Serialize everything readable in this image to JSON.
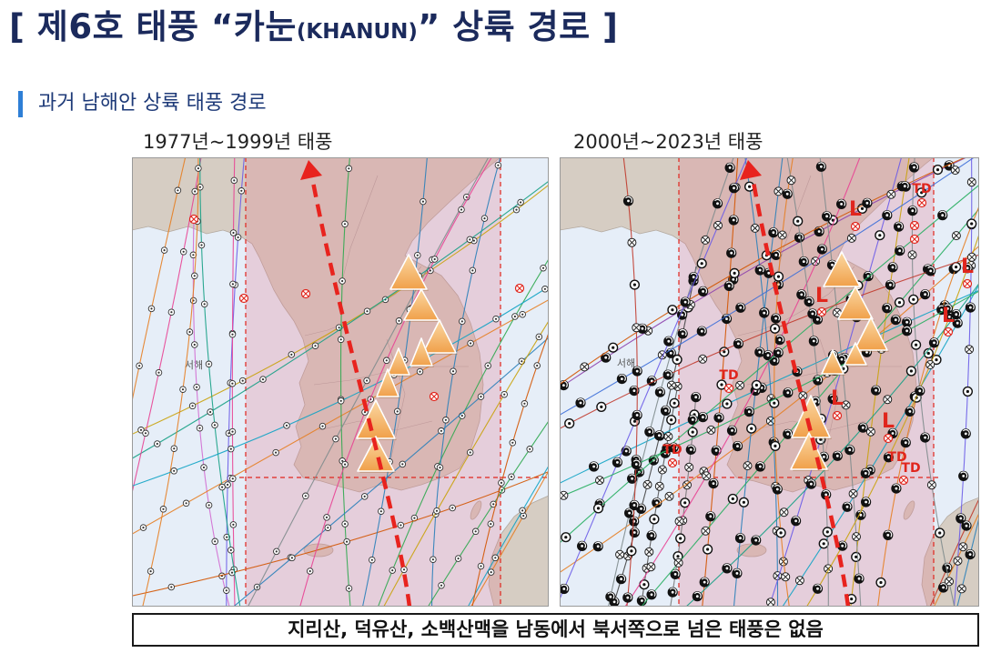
{
  "slide": {
    "title": {
      "prefix": "[ 제6호 태풍 “카눈",
      "latin": "(KHANUN)",
      "suffix": "” 상륙 경로 ]"
    },
    "subtitle": "과거 남해안 상륙 태풍 경로",
    "maps": [
      {
        "label": "1977년~1999년 태풍",
        "sea_label": "서해"
      },
      {
        "label": "2000년~2023년 태풍",
        "sea_label": "서해"
      }
    ],
    "annotations": {
      "td_label": "TD",
      "low_label": "L"
    },
    "note": "지리산, 덕유산, 소백산맥을 남동에서 북서쪽으로 넘은 태풍은 없음"
  },
  "colors": {
    "title": "#1b2a5c",
    "accent_bar": "#2e7fd6",
    "arrow": "#e8231e",
    "annotation": "#e0261d",
    "mountain_top": "#fbd9a4",
    "mountain_bottom": "#f0a04a",
    "overlay": "#e27d90"
  },
  "icons": {
    "mountain": "mountain-triangle-icon",
    "typhoon": "typhoon-symbol-icon",
    "arrow": "landfall-path-arrow"
  }
}
